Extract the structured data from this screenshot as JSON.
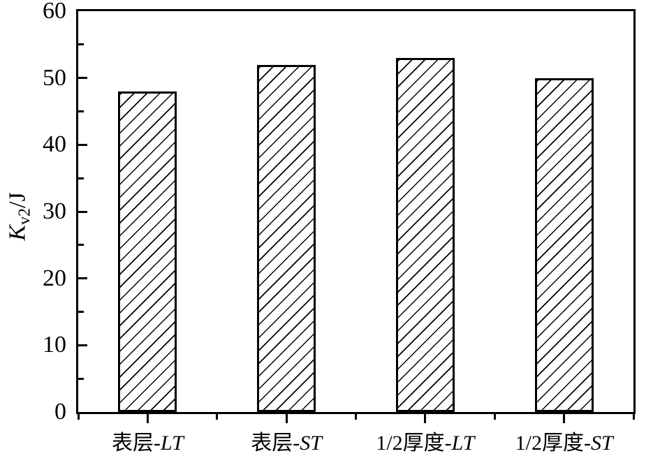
{
  "chart_data": {
    "type": "bar",
    "title": "",
    "categories": [
      "表层-LT",
      "表层-ST",
      "1/2厚度-LT",
      "1/2厚度-ST"
    ],
    "categories_rich": [
      {
        "prefix": "表层-",
        "italic_suffix": "LT"
      },
      {
        "prefix": "表层-",
        "italic_suffix": "ST"
      },
      {
        "prefix": "1/2厚度-",
        "italic_suffix": "LT"
      },
      {
        "prefix": "1/2厚度-",
        "italic_suffix": "ST"
      }
    ],
    "values": [
      48,
      52,
      53,
      50
    ],
    "xlabel": "",
    "ylabel": "Kv2/J",
    "ylabel_rich": {
      "symbol": "K",
      "subscript": "v2",
      "suffix": "/J"
    },
    "ylim": [
      0,
      60
    ],
    "yticks_major": [
      0,
      10,
      20,
      30,
      40,
      50,
      60
    ],
    "yticks_minor": [
      5,
      15,
      25,
      35,
      45,
      55
    ],
    "grid": false,
    "legend": "none",
    "bar_style": {
      "fill": "#ffffff",
      "hatch": "forward-diagonal-lines",
      "hatch_color": "#000000",
      "edge_color": "#000000"
    },
    "axis_color": "#000000",
    "background": "#ffffff"
  }
}
